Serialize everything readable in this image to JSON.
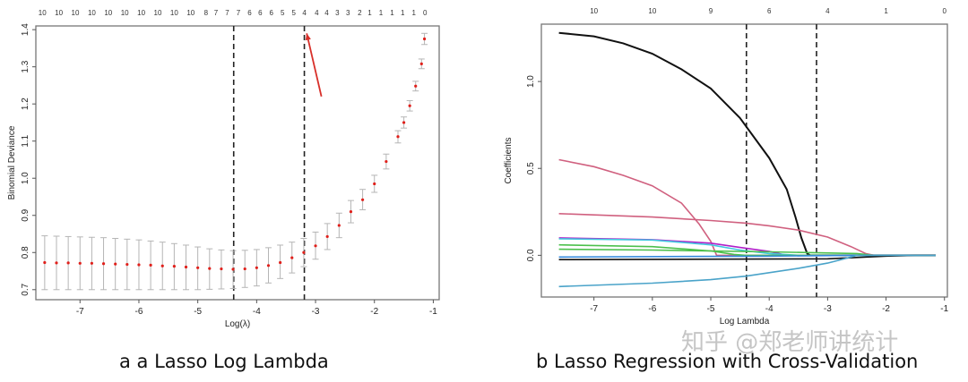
{
  "chart_data": [
    {
      "type": "scatter",
      "subtype": "cv-error-bars",
      "caption": "a a Lasso Log Lambda",
      "xlabel": "Log(λ)",
      "ylabel": "Binomial Deviance",
      "xlim": [
        -7.75,
        -0.9
      ],
      "ylim": [
        0.673,
        1.41
      ],
      "xticks": [
        -7,
        -6,
        -5,
        -4,
        -3,
        -2,
        -1
      ],
      "yticks": [
        0.7,
        0.8,
        0.9,
        1.0,
        1.1,
        1.2,
        1.3,
        1.4
      ],
      "grid": false,
      "colors": {
        "point": "#E0201B",
        "errorbar": "#B5B5B5",
        "arrow": "#D8302A"
      },
      "top_axis": [
        {
          "x": -7.64,
          "label": "10"
        },
        {
          "x": -7.36,
          "label": "10"
        },
        {
          "x": -7.08,
          "label": "10"
        },
        {
          "x": -6.8,
          "label": "10"
        },
        {
          "x": -6.52,
          "label": "10"
        },
        {
          "x": -6.24,
          "label": "10"
        },
        {
          "x": -5.96,
          "label": "10"
        },
        {
          "x": -5.68,
          "label": "10"
        },
        {
          "x": -5.4,
          "label": "10"
        },
        {
          "x": -5.12,
          "label": "10"
        },
        {
          "x": -4.86,
          "label": "8"
        },
        {
          "x": -4.69,
          "label": "7"
        },
        {
          "x": -4.5,
          "label": "7"
        },
        {
          "x": -4.31,
          "label": "7"
        },
        {
          "x": -4.12,
          "label": "6"
        },
        {
          "x": -3.94,
          "label": "6"
        },
        {
          "x": -3.75,
          "label": "6"
        },
        {
          "x": -3.56,
          "label": "5"
        },
        {
          "x": -3.37,
          "label": "5"
        },
        {
          "x": -3.19,
          "label": "4"
        },
        {
          "x": -2.98,
          "label": "4"
        },
        {
          "x": -2.81,
          "label": "4"
        },
        {
          "x": -2.63,
          "label": "3"
        },
        {
          "x": -2.45,
          "label": "3"
        },
        {
          "x": -2.25,
          "label": "2"
        },
        {
          "x": -2.08,
          "label": "1"
        },
        {
          "x": -1.89,
          "label": "1"
        },
        {
          "x": -1.7,
          "label": "1"
        },
        {
          "x": -1.52,
          "label": "1"
        },
        {
          "x": -1.33,
          "label": "1"
        },
        {
          "x": -1.14,
          "label": "0"
        }
      ],
      "vlines": [
        -4.39,
        -3.19
      ],
      "arrow": {
        "from": [
          -2.9,
          1.22
        ],
        "to": [
          -3.15,
          1.39
        ]
      },
      "points": [
        {
          "x": -7.6,
          "y": 0.773,
          "lo": 0.7,
          "hi": 0.845
        },
        {
          "x": -7.4,
          "y": 0.772,
          "lo": 0.7,
          "hi": 0.844
        },
        {
          "x": -7.2,
          "y": 0.772,
          "lo": 0.7,
          "hi": 0.843
        },
        {
          "x": -7.0,
          "y": 0.771,
          "lo": 0.7,
          "hi": 0.842
        },
        {
          "x": -6.8,
          "y": 0.771,
          "lo": 0.7,
          "hi": 0.841
        },
        {
          "x": -6.6,
          "y": 0.77,
          "lo": 0.7,
          "hi": 0.84
        },
        {
          "x": -6.4,
          "y": 0.769,
          "lo": 0.7,
          "hi": 0.838
        },
        {
          "x": -6.2,
          "y": 0.768,
          "lo": 0.7,
          "hi": 0.836
        },
        {
          "x": -6.0,
          "y": 0.767,
          "lo": 0.7,
          "hi": 0.834
        },
        {
          "x": -5.8,
          "y": 0.766,
          "lo": 0.7,
          "hi": 0.831
        },
        {
          "x": -5.6,
          "y": 0.764,
          "lo": 0.7,
          "hi": 0.828
        },
        {
          "x": -5.4,
          "y": 0.763,
          "lo": 0.7,
          "hi": 0.824
        },
        {
          "x": -5.2,
          "y": 0.761,
          "lo": 0.7,
          "hi": 0.82
        },
        {
          "x": -5.0,
          "y": 0.759,
          "lo": 0.7,
          "hi": 0.815
        },
        {
          "x": -4.8,
          "y": 0.757,
          "lo": 0.701,
          "hi": 0.81
        },
        {
          "x": -4.6,
          "y": 0.756,
          "lo": 0.702,
          "hi": 0.807
        },
        {
          "x": -4.4,
          "y": 0.755,
          "lo": 0.703,
          "hi": 0.805
        },
        {
          "x": -4.2,
          "y": 0.756,
          "lo": 0.706,
          "hi": 0.806
        },
        {
          "x": -4.0,
          "y": 0.759,
          "lo": 0.71,
          "hi": 0.808
        },
        {
          "x": -3.8,
          "y": 0.765,
          "lo": 0.718,
          "hi": 0.813
        },
        {
          "x": -3.6,
          "y": 0.773,
          "lo": 0.73,
          "hi": 0.82
        },
        {
          "x": -3.4,
          "y": 0.786,
          "lo": 0.745,
          "hi": 0.828
        },
        {
          "x": -3.2,
          "y": 0.8,
          "lo": 0.762,
          "hi": 0.838
        },
        {
          "x": -3.0,
          "y": 0.818,
          "lo": 0.782,
          "hi": 0.855
        },
        {
          "x": -2.8,
          "y": 0.843,
          "lo": 0.808,
          "hi": 0.878
        },
        {
          "x": -2.6,
          "y": 0.873,
          "lo": 0.84,
          "hi": 0.906
        },
        {
          "x": -2.4,
          "y": 0.91,
          "lo": 0.88,
          "hi": 0.94
        },
        {
          "x": -2.2,
          "y": 0.942,
          "lo": 0.915,
          "hi": 0.97
        },
        {
          "x": -2.0,
          "y": 0.985,
          "lo": 0.962,
          "hi": 1.008
        },
        {
          "x": -1.8,
          "y": 1.045,
          "lo": 1.025,
          "hi": 1.065
        },
        {
          "x": -1.6,
          "y": 1.112,
          "lo": 1.095,
          "hi": 1.128
        },
        {
          "x": -1.5,
          "y": 1.15,
          "lo": 1.135,
          "hi": 1.165
        },
        {
          "x": -1.4,
          "y": 1.195,
          "lo": 1.181,
          "hi": 1.209
        },
        {
          "x": -1.3,
          "y": 1.248,
          "lo": 1.235,
          "hi": 1.261
        },
        {
          "x": -1.2,
          "y": 1.308,
          "lo": 1.295,
          "hi": 1.321
        },
        {
          "x": -1.15,
          "y": 1.375,
          "lo": 1.36,
          "hi": 1.39
        }
      ]
    },
    {
      "type": "line",
      "caption": "b Lasso Regression with Cross-Validation",
      "xlabel": "Log Lambda",
      "ylabel": "Coefficients",
      "xlim": [
        -7.9,
        -0.95
      ],
      "ylim": [
        -0.24,
        1.33
      ],
      "xticks": [
        -7,
        -6,
        -5,
        -4,
        -3,
        -2,
        -1
      ],
      "yticks": [
        0.0,
        0.5,
        1.0
      ],
      "grid": false,
      "top_axis": [
        {
          "x": -7,
          "label": "10"
        },
        {
          "x": -6,
          "label": "10"
        },
        {
          "x": -5,
          "label": "9"
        },
        {
          "x": -4,
          "label": "6"
        },
        {
          "x": -3,
          "label": "4"
        },
        {
          "x": -2,
          "label": "1"
        },
        {
          "x": -1,
          "label": "0"
        }
      ],
      "vlines": [
        -4.39,
        -3.19
      ],
      "series": [
        {
          "color": "#111111",
          "points": [
            [
              -7.6,
              1.28
            ],
            [
              -7,
              1.26
            ],
            [
              -6.5,
              1.22
            ],
            [
              -6,
              1.16
            ],
            [
              -5.5,
              1.07
            ],
            [
              -5,
              0.96
            ],
            [
              -4.5,
              0.79
            ],
            [
              -4,
              0.56
            ],
            [
              -3.7,
              0.38
            ],
            [
              -3.55,
              0.22
            ],
            [
              -3.45,
              0.1
            ],
            [
              -3.35,
              0.01
            ],
            [
              -3.3,
              0
            ],
            [
              -1.15,
              0
            ]
          ]
        },
        {
          "color": "#D0607F",
          "points": [
            [
              -7.6,
              0.55
            ],
            [
              -7,
              0.51
            ],
            [
              -6.5,
              0.46
            ],
            [
              -6,
              0.4
            ],
            [
              -5.5,
              0.3
            ],
            [
              -5.2,
              0.18
            ],
            [
              -5,
              0.08
            ],
            [
              -4.9,
              0
            ],
            [
              -1.15,
              0
            ]
          ]
        },
        {
          "color": "#D0607F",
          "points": [
            [
              -7.6,
              0.24
            ],
            [
              -6,
              0.22
            ],
            [
              -5,
              0.2
            ],
            [
              -4.4,
              0.185
            ],
            [
              -4,
              0.17
            ],
            [
              -3.5,
              0.145
            ],
            [
              -3,
              0.105
            ],
            [
              -2.6,
              0.05
            ],
            [
              -2.35,
              0.01
            ],
            [
              -2.2,
              0
            ],
            [
              -1.15,
              0
            ]
          ]
        },
        {
          "color": "#B020C8",
          "points": [
            [
              -7.6,
              0.1
            ],
            [
              -6,
              0.09
            ],
            [
              -5,
              0.07
            ],
            [
              -4.5,
              0.045
            ],
            [
              -4,
              0.022
            ],
            [
              -3.7,
              0
            ],
            [
              -1.15,
              0
            ]
          ]
        },
        {
          "color": "#40C8E0",
          "points": [
            [
              -7.6,
              0.095
            ],
            [
              -6,
              0.088
            ],
            [
              -5,
              0.06
            ],
            [
              -4.5,
              0.03
            ],
            [
              -4,
              0.01
            ],
            [
              -3.5,
              0
            ],
            [
              -1.15,
              0
            ]
          ]
        },
        {
          "color": "#4CC04C",
          "points": [
            [
              -7.6,
              0.06
            ],
            [
              -6,
              0.05
            ],
            [
              -5,
              0.025
            ],
            [
              -4.6,
              0.005
            ],
            [
              -4.4,
              0
            ],
            [
              -1.15,
              0
            ]
          ]
        },
        {
          "color": "#4CC04C",
          "points": [
            [
              -7.6,
              0.035
            ],
            [
              -6,
              0.03
            ],
            [
              -4,
              0.02
            ],
            [
              -2.5,
              0.01
            ],
            [
              -2.2,
              0
            ],
            [
              -1.15,
              0
            ]
          ]
        },
        {
          "color": "#3388DD",
          "points": [
            [
              -7.6,
              -0.01
            ],
            [
              -4,
              -0.005
            ],
            [
              -2.5,
              0
            ],
            [
              -1.15,
              0
            ]
          ]
        },
        {
          "color": "#111111",
          "points": [
            [
              -7.6,
              -0.025
            ],
            [
              -3,
              -0.02
            ],
            [
              -2,
              -0.005
            ],
            [
              -1.5,
              0
            ],
            [
              -1.15,
              0
            ]
          ]
        },
        {
          "color": "#4AA3C9",
          "points": [
            [
              -7.6,
              -0.18
            ],
            [
              -6,
              -0.16
            ],
            [
              -5,
              -0.14
            ],
            [
              -4.4,
              -0.12
            ],
            [
              -4,
              -0.1
            ],
            [
              -3.5,
              -0.075
            ],
            [
              -3,
              -0.045
            ],
            [
              -2.6,
              -0.01
            ],
            [
              -2.5,
              0
            ],
            [
              -1.15,
              0
            ]
          ]
        }
      ]
    }
  ],
  "watermark": "知乎 @郑老师讲统计"
}
